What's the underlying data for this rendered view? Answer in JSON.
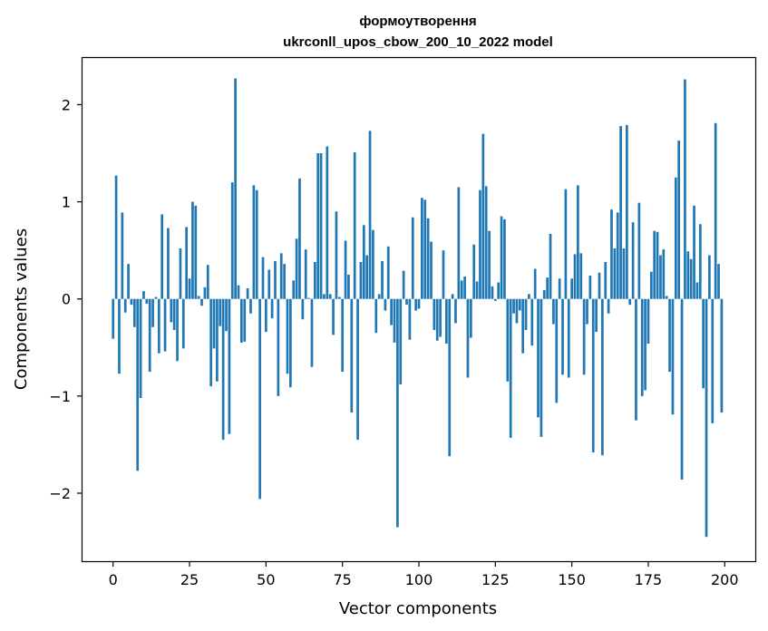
{
  "chart_data": {
    "type": "bar",
    "title": "формоутворення",
    "subtitle": "ukrconll_upos_cbow_200_10_2022 model",
    "xlabel": "Vector components",
    "ylabel": "Components values",
    "xlim": [
      -10,
      210
    ],
    "ylim": [
      -2.7,
      2.48
    ],
    "xticks": [
      0,
      25,
      50,
      75,
      100,
      125,
      150,
      175,
      200
    ],
    "yticks": [
      -2,
      -1,
      0,
      1,
      2
    ],
    "xtick_labels": [
      "0",
      "25",
      "50",
      "75",
      "100",
      "125",
      "150",
      "175",
      "200"
    ],
    "ytick_labels": [
      "−2",
      "−1",
      "0",
      "1",
      "2"
    ],
    "bar_color": "#1f77b4",
    "values": [
      -0.41,
      1.27,
      -0.77,
      0.89,
      -0.14,
      0.36,
      -0.06,
      -0.29,
      -1.77,
      -1.02,
      0.08,
      -0.05,
      -0.75,
      -0.29,
      0.02,
      -0.56,
      0.87,
      -0.54,
      0.73,
      -0.24,
      -0.32,
      -0.64,
      0.52,
      -0.51,
      0.74,
      0.21,
      1.0,
      0.96,
      0.03,
      -0.07,
      0.12,
      0.35,
      -0.9,
      -0.51,
      -0.85,
      -0.28,
      -1.45,
      -0.33,
      -1.39,
      1.2,
      2.27,
      0.14,
      -0.45,
      -0.44,
      0.11,
      -0.15,
      1.17,
      1.12,
      -2.06,
      0.43,
      -0.34,
      0.3,
      -0.2,
      0.39,
      -1.0,
      0.47,
      0.36,
      -0.77,
      -0.91,
      0.19,
      0.62,
      1.24,
      -0.21,
      0.51,
      0.01,
      -0.7,
      0.38,
      1.5,
      1.5,
      0.05,
      1.57,
      0.05,
      -0.37,
      0.9,
      0.02,
      -0.75,
      0.6,
      0.25,
      -1.17,
      1.51,
      -1.45,
      0.38,
      0.76,
      0.45,
      1.73,
      0.71,
      -0.35,
      0.05,
      0.39,
      -0.12,
      0.54,
      -0.27,
      -0.45,
      -2.35,
      -0.88,
      0.29,
      -0.06,
      -0.42,
      0.84,
      -0.12,
      -0.1,
      1.04,
      1.02,
      0.83,
      0.59,
      -0.32,
      -0.43,
      -0.39,
      0.5,
      -0.46,
      -1.62,
      0.05,
      -0.25,
      1.15,
      0.19,
      0.23,
      -0.81,
      -0.4,
      0.56,
      0.18,
      1.12,
      1.7,
      1.16,
      0.7,
      0.13,
      -0.02,
      0.17,
      0.85,
      0.82,
      -0.85,
      -1.43,
      -0.15,
      -0.25,
      -0.12,
      -0.56,
      -0.32,
      0.05,
      -0.48,
      0.31,
      -1.22,
      -1.42,
      0.09,
      0.22,
      0.67,
      -0.26,
      -1.07,
      0.21,
      -0.78,
      1.13,
      -0.81,
      0.21,
      0.46,
      1.17,
      0.47,
      -0.78,
      -0.26,
      0.24,
      -1.58,
      -0.34,
      0.27,
      -1.61,
      0.38,
      -0.15,
      0.92,
      0.52,
      0.89,
      1.78,
      0.52,
      1.79,
      -0.06,
      0.79,
      -1.25,
      0.99,
      -1.0,
      -0.94,
      -0.46,
      0.28,
      0.7,
      0.69,
      0.45,
      0.51,
      0.03,
      -0.75,
      -1.19,
      1.25,
      1.63,
      -1.86,
      2.26,
      0.49,
      0.41,
      0.96,
      0.17,
      0.77,
      -0.92,
      -2.45,
      0.45,
      -1.28,
      1.81,
      0.36,
      -1.17
    ]
  }
}
